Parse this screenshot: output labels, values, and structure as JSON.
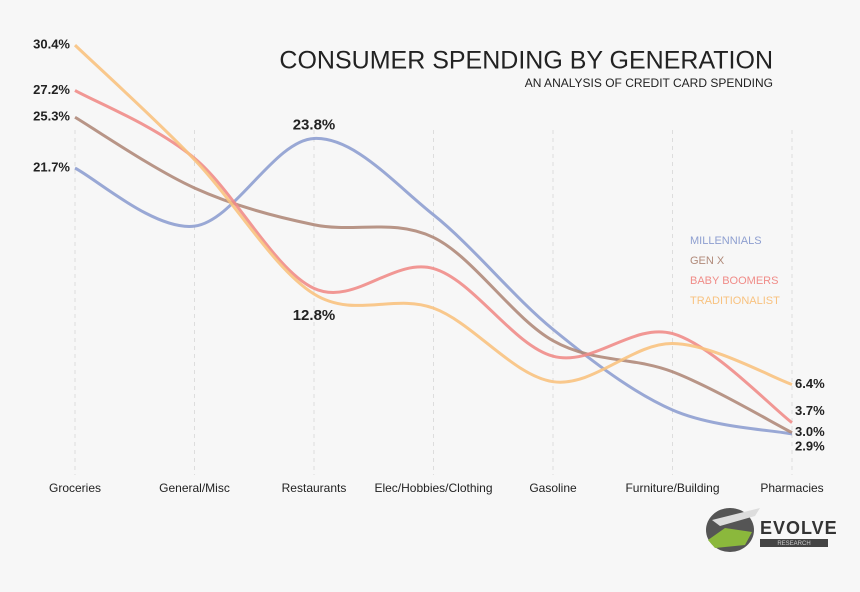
{
  "chart_data": {
    "type": "line",
    "title": "CONSUMER SPENDING BY GENERATION",
    "subtitle": "AN ANALYSIS OF CREDIT CARD SPENDING",
    "categories": [
      "Groceries",
      "General/Misc",
      "Restaurants",
      "Elec/Hobbies/Clothing",
      "Gasoline",
      "Furniture/Building",
      "Pharmacies"
    ],
    "series": [
      {
        "name": "MILLENNIALS",
        "color": "#8e9fd0",
        "values": [
          21.7,
          17.6,
          23.8,
          18.4,
          10.3,
          4.6,
          2.9
        ],
        "value_labels": [
          "21.7%",
          null,
          "23.8%",
          null,
          null,
          null,
          "2.9%"
        ]
      },
      {
        "name": "GEN X",
        "color": "#b08a7a",
        "values": [
          25.3,
          20.3,
          17.7,
          16.8,
          9.5,
          7.3,
          3.0
        ],
        "value_labels": [
          "25.3%",
          null,
          null,
          null,
          null,
          null,
          "3.0%"
        ]
      },
      {
        "name": "BABY BOOMERS",
        "color": "#f08c88",
        "values": [
          27.2,
          22.4,
          13.2,
          14.6,
          8.4,
          10.0,
          3.7
        ],
        "value_labels": [
          "27.2%",
          null,
          null,
          null,
          null,
          null,
          "3.7%"
        ]
      },
      {
        "name": "TRADITIONALIST",
        "color": "#f8c27f",
        "values": [
          30.4,
          22.3,
          12.8,
          11.8,
          6.6,
          9.3,
          6.4
        ],
        "value_labels": [
          "30.4%",
          null,
          "12.8%",
          null,
          null,
          null,
          "6.4%"
        ]
      }
    ],
    "ylim": [
      0,
      31
    ],
    "legend": "right",
    "logo": {
      "text": "EVOLVE",
      "subtext": "RESEARCH"
    }
  }
}
